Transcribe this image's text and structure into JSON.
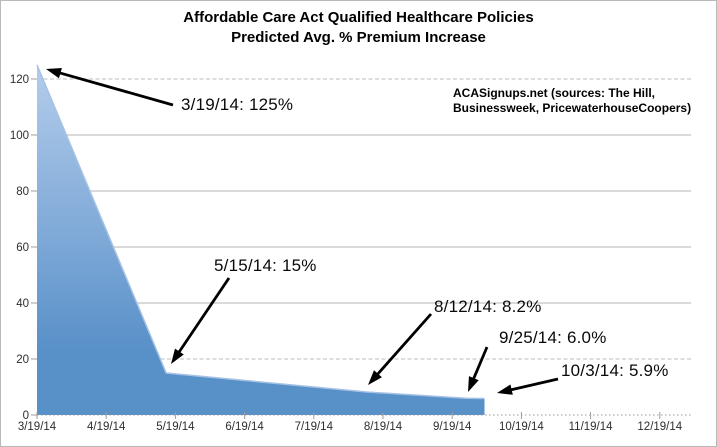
{
  "title": {
    "line1": "Affordable Care Act Qualified Healthcare Policies",
    "line2": "Predicted Avg. % Premium Increase"
  },
  "source": {
    "line1": "ACASignups.net (sources: The Hill,",
    "line2": "Businessweek, PricewaterhouseCoopers)"
  },
  "chart_data": {
    "type": "area",
    "title": "Affordable Care Act Qualified Healthcare Policies — Predicted Avg. % Premium Increase",
    "xlabel": "",
    "ylabel": "",
    "grid": true,
    "ylim": [
      0,
      130
    ],
    "y_ticks": [
      0,
      20,
      40,
      60,
      80,
      100,
      120
    ],
    "dashed_y_gridlines": [
      120,
      20
    ],
    "x_tick_labels": [
      "3/19/14",
      "4/19/14",
      "5/19/14",
      "6/19/14",
      "7/19/14",
      "8/19/14",
      "9/19/14",
      "10/19/14",
      "11/19/14",
      "12/19/14"
    ],
    "points": [
      {
        "date": "3/19/14",
        "value": 125
      },
      {
        "date": "5/15/14",
        "value": 15
      },
      {
        "date": "8/12/14",
        "value": 8.2
      },
      {
        "date": "9/25/14",
        "value": 6.0
      },
      {
        "date": "10/3/14",
        "value": 5.9
      }
    ],
    "annotations": [
      {
        "label": "3/19/14: 125%",
        "date": "3/19/14",
        "value": 125
      },
      {
        "label": "5/15/14: 15%",
        "date": "5/15/14",
        "value": 15
      },
      {
        "label": "8/12/14: 8.2%",
        "date": "8/12/14",
        "value": 8.2
      },
      {
        "label": "9/25/14: 6.0%",
        "date": "9/25/14",
        "value": 6.0
      },
      {
        "label": "10/3/14: 5.9%",
        "date": "10/3/14",
        "value": 5.9
      }
    ],
    "colors": {
      "area_top": "#b4cdeb",
      "area_mid": "#7da8d7",
      "area_bottom": "#5890c8",
      "area_edge": "#a5c2e4",
      "gridline": "#c3c3c3",
      "gridline_dashed": "#c9c9c9",
      "axis": "#9c9c9c",
      "tick_label": "#2e2e2e",
      "arrow": "#000000"
    }
  }
}
